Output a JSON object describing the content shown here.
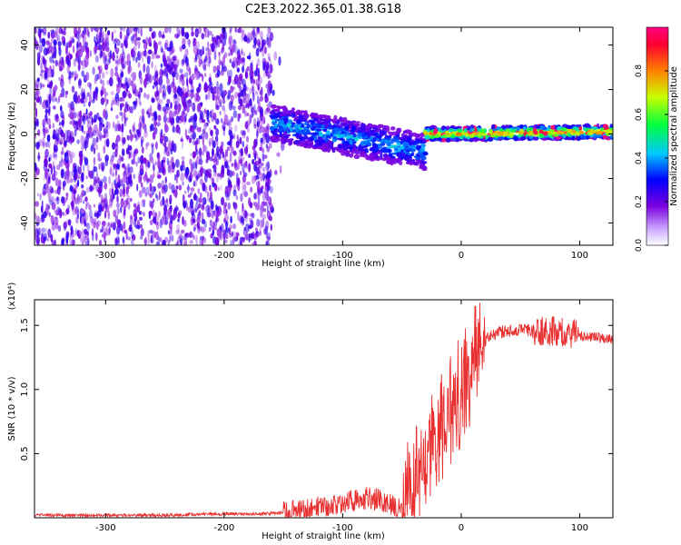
{
  "figure": {
    "title": "C2E3.2022.365.01.38.G18"
  },
  "chart_data": [
    {
      "type": "heatmap",
      "xlabel": "Height of straight line (km)",
      "ylabel": "Frequency (Hz)",
      "xlim": [
        -360,
        128
      ],
      "ylim": [
        -50,
        48
      ],
      "x_ticks": [
        "-300",
        "-200",
        "-100",
        "0",
        "100"
      ],
      "x_tick_values": [
        -300,
        -200,
        -100,
        0,
        100
      ],
      "y_ticks": [
        "-40",
        "-20",
        "0",
        "20",
        "40"
      ],
      "y_tick_values": [
        -40,
        -20,
        0,
        20,
        40
      ],
      "colorbar": {
        "label": "Normalized spectral amplitude",
        "range": [
          0,
          1
        ],
        "ticks": [
          "0.0",
          "0.2",
          "0.4",
          "0.6",
          "0.8"
        ],
        "tick_values": [
          0.0,
          0.2,
          0.4,
          0.6,
          0.8
        ],
        "colors": [
          "#ffffff",
          "#7a00e0",
          "#0000ff",
          "#00c8ff",
          "#00ff40",
          "#c8ff00",
          "#ff8000",
          "#ff0040",
          "#ff0080"
        ]
      },
      "regions": [
        {
          "x_range": [
            -360,
            -160
          ],
          "freq_range": [
            -50,
            48
          ],
          "amplitude": 0.05
        },
        {
          "x_range": [
            -160,
            -30
          ],
          "freq_center": [
            5,
            -8
          ],
          "freq_width": 8,
          "amplitude": 0.35
        },
        {
          "x_range": [
            -30,
            128
          ],
          "freq_center": [
            0,
            1
          ],
          "freq_width": 3,
          "amplitude": 0.75
        }
      ]
    },
    {
      "type": "line",
      "xlabel": "Height of straight line (km)",
      "ylabel": "SNR (10 * v/v)",
      "y_multiplier": "(x10⁴)",
      "xlim": [
        -360,
        128
      ],
      "ylim": [
        0,
        1.7
      ],
      "x_ticks": [
        "-300",
        "-200",
        "-100",
        "0",
        "100"
      ],
      "x_tick_values": [
        -300,
        -200,
        -100,
        0,
        100
      ],
      "y_ticks": [
        "0.5",
        "1.0",
        "1.5"
      ],
      "y_tick_values": [
        0.5,
        1.0,
        1.5
      ],
      "series": [
        {
          "color": "#e83030",
          "x": [
            -360,
            -300,
            -250,
            -200,
            -170,
            -150,
            -130,
            -110,
            -100,
            -90,
            -80,
            -70,
            -60,
            -50,
            -45,
            -40,
            -35,
            -30,
            -25,
            -20,
            -15,
            -10,
            -5,
            0,
            5,
            10,
            15,
            20,
            25,
            30,
            40,
            50,
            60,
            70,
            80,
            90,
            100,
            110,
            120,
            128
          ],
          "y": [
            0.02,
            0.02,
            0.02,
            0.03,
            0.03,
            0.04,
            0.06,
            0.1,
            0.12,
            0.14,
            0.15,
            0.14,
            0.1,
            0.05,
            0.15,
            0.25,
            0.35,
            0.45,
            0.6,
            0.7,
            0.75,
            0.8,
            0.9,
            1.0,
            1.1,
            1.2,
            1.3,
            1.38,
            1.42,
            1.44,
            1.46,
            1.47,
            1.46,
            1.46,
            1.45,
            1.44,
            1.42,
            1.41,
            1.4,
            1.39
          ]
        }
      ]
    }
  ]
}
